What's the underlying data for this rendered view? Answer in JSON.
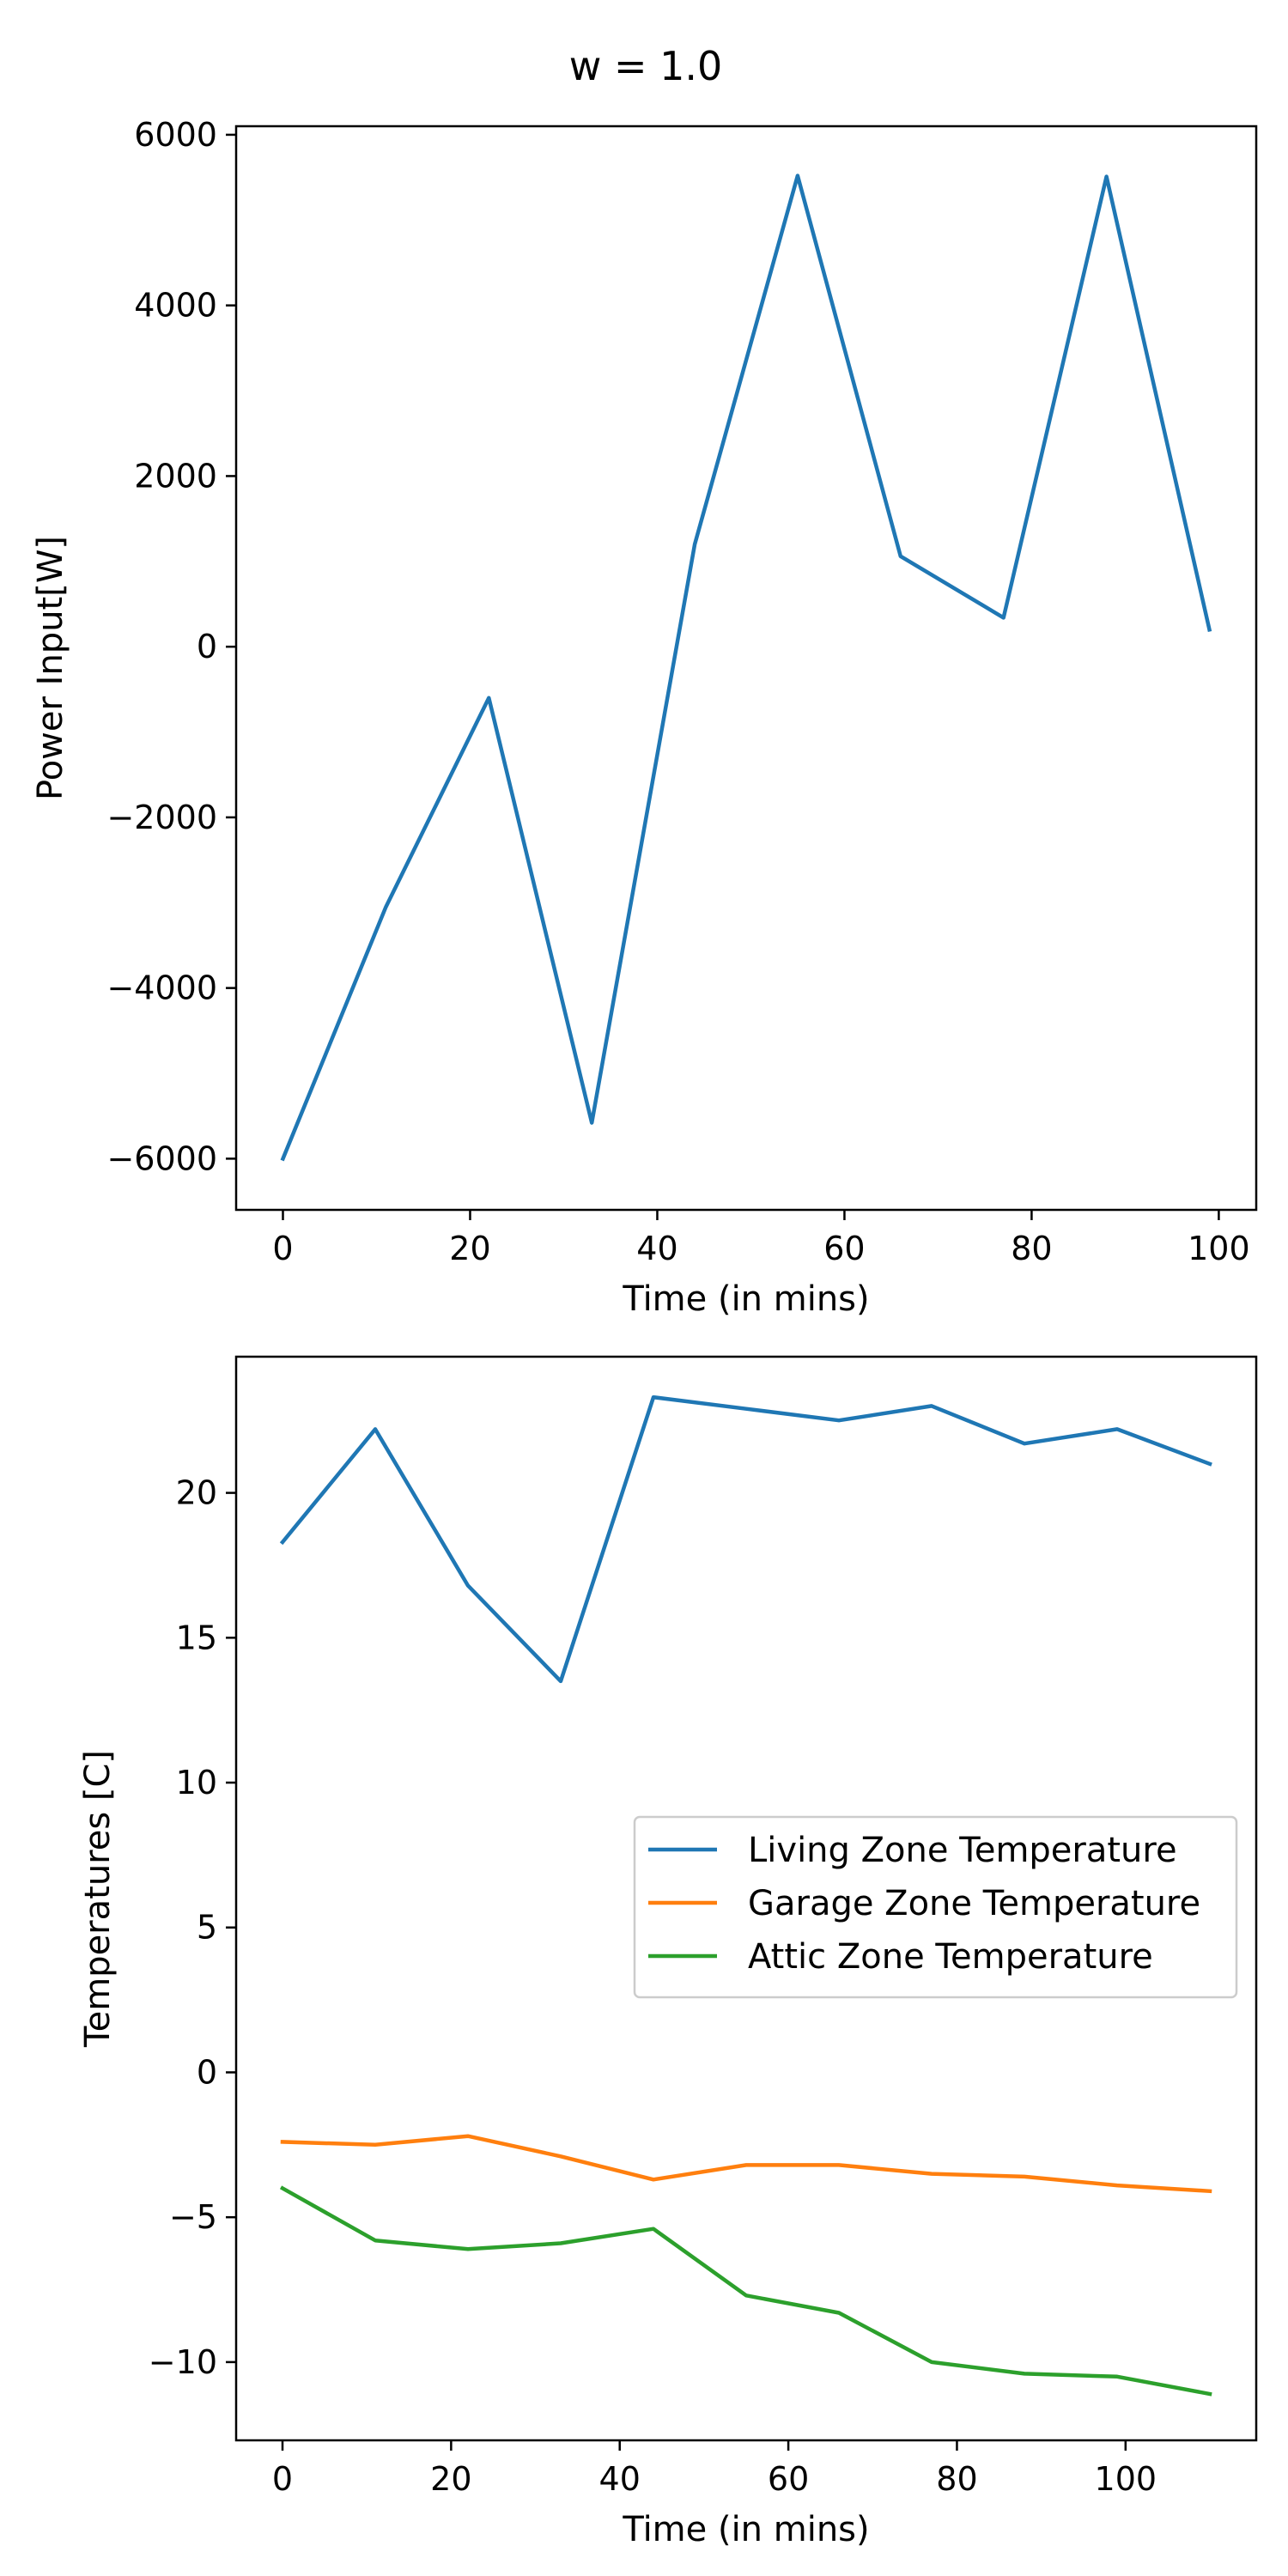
{
  "figure": {
    "suptitle": "w = 1.0"
  },
  "chart_data": [
    {
      "type": "line",
      "title": "",
      "xlabel": "Time (in mins)",
      "ylabel": "Power Input[W]",
      "xlim": [
        -5,
        104
      ],
      "ylim": [
        -6600,
        6100
      ],
      "xticks": [
        0,
        20,
        40,
        60,
        80,
        100
      ],
      "yticks": [
        -6000,
        -4000,
        -2000,
        0,
        2000,
        4000,
        6000
      ],
      "xtick_labels": [
        "0",
        "20",
        "40",
        "60",
        "80",
        "100"
      ],
      "ytick_labels": [
        "−6000",
        "−4000",
        "−2000",
        "0",
        "2000",
        "4000",
        "6000"
      ],
      "grid": false,
      "series": [
        {
          "color": "#1f77b4",
          "x": [
            0,
            11,
            22,
            33,
            44,
            55,
            66,
            77,
            88,
            99
          ],
          "y": [
            -6000,
            -3050,
            -600,
            -5580,
            1200,
            5520,
            1060,
            340,
            5510,
            200
          ]
        }
      ]
    },
    {
      "type": "line",
      "title": "",
      "xlabel": "Time (in mins)",
      "ylabel": "Temperatures [C]",
      "xlim": [
        -5.5,
        115.5
      ],
      "ylim": [
        -12.7,
        24.7
      ],
      "xticks": [
        0,
        20,
        40,
        60,
        80,
        100
      ],
      "yticks": [
        -10,
        -5,
        0,
        5,
        10,
        15,
        20
      ],
      "xtick_labels": [
        "0",
        "20",
        "40",
        "60",
        "80",
        "100"
      ],
      "ytick_labels": [
        "−10",
        "−5",
        "0",
        "5",
        "10",
        "15",
        "20"
      ],
      "grid": false,
      "legend": {
        "placement": "center-right"
      },
      "series": [
        {
          "name": "Living Zone Temperature",
          "color": "#1f77b4",
          "x": [
            0,
            11,
            22,
            33,
            44,
            55,
            66,
            77,
            88,
            99,
            110
          ],
          "y": [
            18.3,
            22.2,
            16.8,
            13.5,
            23.3,
            22.9,
            22.5,
            23.0,
            21.7,
            22.2,
            21.0
          ]
        },
        {
          "name": "Garage Zone Temperature",
          "color": "#ff7f0e",
          "x": [
            0,
            11,
            22,
            33,
            44,
            55,
            66,
            77,
            88,
            99,
            110
          ],
          "y": [
            -2.4,
            -2.5,
            -2.2,
            -2.9,
            -3.7,
            -3.2,
            -3.2,
            -3.5,
            -3.6,
            -3.9,
            -4.1
          ]
        },
        {
          "name": "Attic Zone Temperature",
          "color": "#2ca02c",
          "x": [
            0,
            11,
            22,
            33,
            44,
            55,
            66,
            77,
            88,
            99,
            110
          ],
          "y": [
            -4.0,
            -5.8,
            -6.1,
            -5.9,
            -5.4,
            -7.7,
            -8.3,
            -10.0,
            -10.4,
            -10.5,
            -11.1
          ]
        }
      ]
    }
  ]
}
